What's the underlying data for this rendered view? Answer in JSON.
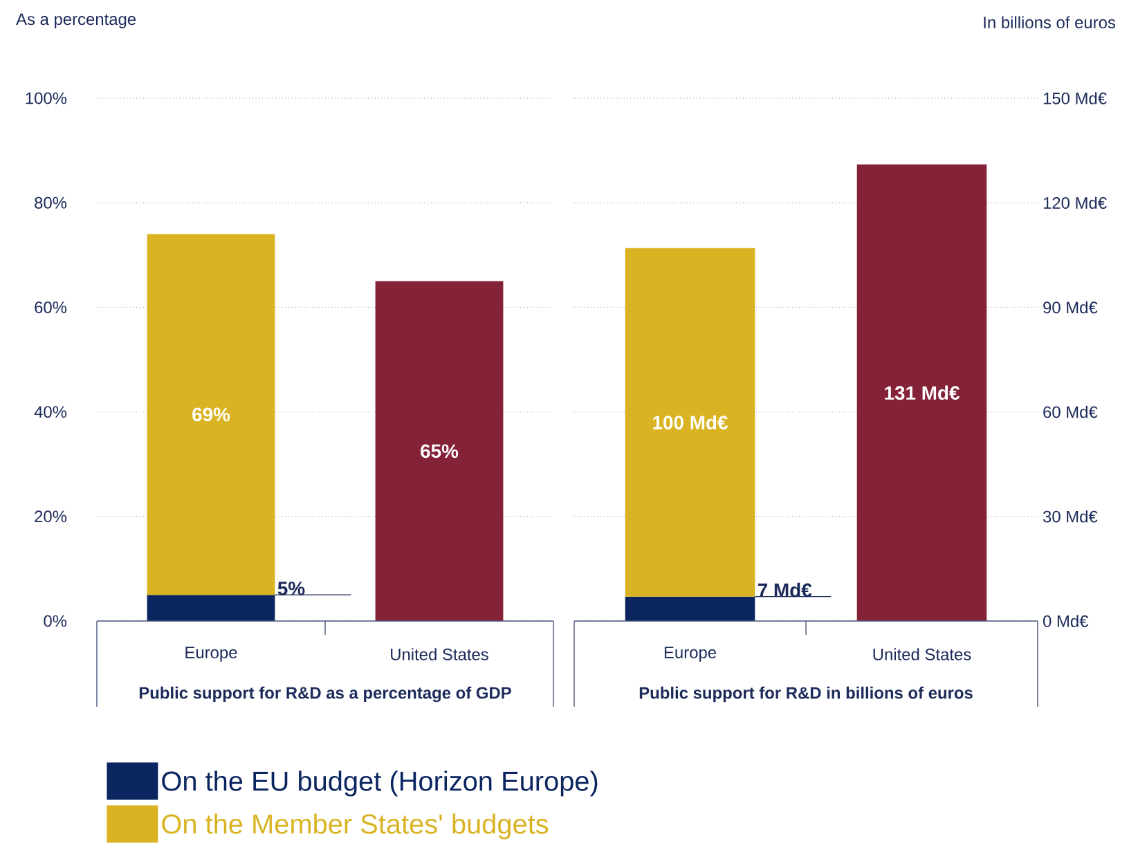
{
  "chart_data": [
    {
      "type": "bar",
      "stacked": true,
      "ylabel": "As a percentage",
      "xlabel": "Public support for R&D as a percentage of GDP",
      "categories": [
        "Europe",
        "United States"
      ],
      "series": [
        {
          "name": "On the EU budget (Horizon Europe)",
          "color": "#0b2560",
          "values": [
            5,
            null
          ],
          "value_labels": [
            "5%",
            null
          ]
        },
        {
          "name": "On the Member States' budgets",
          "color": "#d9b321",
          "values": [
            69,
            null
          ],
          "value_labels": [
            "69%",
            null
          ]
        },
        {
          "color": "#842238",
          "values": [
            null,
            65
          ],
          "value_labels": [
            null,
            "65%"
          ]
        }
      ],
      "ylim": [
        0,
        100
      ],
      "yticks": [
        {
          "value": 0,
          "label": "0%"
        },
        {
          "value": 20,
          "label": "20%"
        },
        {
          "value": 40,
          "label": "40%"
        },
        {
          "value": 60,
          "label": "60%"
        },
        {
          "value": 80,
          "label": "80%"
        },
        {
          "value": 100,
          "label": "100%"
        }
      ],
      "grid": "y",
      "legend": "bottom"
    },
    {
      "type": "bar",
      "stacked": true,
      "ylabel": "In billions of euros",
      "xlabel": "Public support for R&D in billions of euros",
      "categories": [
        "Europe",
        "United States"
      ],
      "series": [
        {
          "color": "#0b2560",
          "values": [
            7,
            null
          ],
          "value_labels": [
            "7 Md€",
            null
          ]
        },
        {
          "color": "#d9b321",
          "values": [
            100,
            null
          ],
          "value_labels": [
            "100 Md€",
            null
          ]
        },
        {
          "color": "#842238",
          "values": [
            null,
            131
          ],
          "value_labels": [
            null,
            "131 Md€"
          ]
        }
      ],
      "ylim": [
        0,
        150
      ],
      "yticks": [
        {
          "value": 0,
          "label": "0 Md€"
        },
        {
          "value": 30,
          "label": "30 Md€"
        },
        {
          "value": 60,
          "label": "60 Md€"
        },
        {
          "value": 90,
          "label": "90 Md€"
        },
        {
          "value": 120,
          "label": "120 Md€"
        },
        {
          "value": 150,
          "label": "150 Md€"
        }
      ],
      "grid": "y"
    }
  ]
}
